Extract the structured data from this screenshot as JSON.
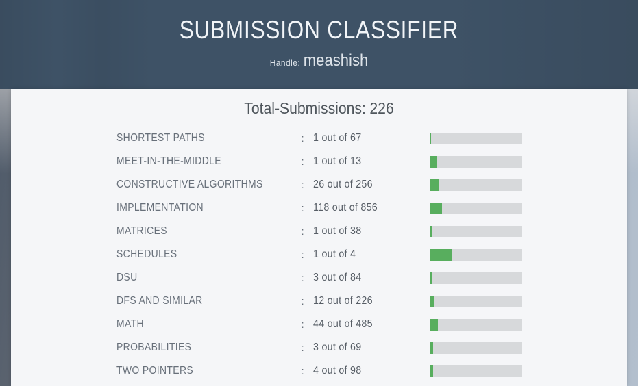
{
  "colors": {
    "header_bg": "#3e5266",
    "header_text": "#f2f5f8",
    "handle_text": "#dde3e9",
    "card_bg": "#f5f6f8",
    "page_text": "#4f565c",
    "label_text": "#68707a",
    "value_text": "#575e66",
    "bar_track": "#d7d9db",
    "bar_fill": "#58ae5e"
  },
  "header": {
    "title": "SUBMISSION CLASSIFIER",
    "handle_label": "Handle:",
    "handle_value": "meashish"
  },
  "summary": {
    "total_label": "Total-Submissions:",
    "total_value": "226"
  },
  "row_separator": ":",
  "rows": [
    {
      "label": "SHORTEST PATHS",
      "count": 1,
      "total": 67,
      "display": "1 out of 67"
    },
    {
      "label": "MEET-IN-THE-MIDDLE",
      "count": 1,
      "total": 13,
      "display": "1 out of 13"
    },
    {
      "label": "CONSTRUCTIVE ALGORITHMS",
      "count": 26,
      "total": 256,
      "display": "26 out of 256"
    },
    {
      "label": "IMPLEMENTATION",
      "count": 118,
      "total": 856,
      "display": "118 out of 856"
    },
    {
      "label": "MATRICES",
      "count": 1,
      "total": 38,
      "display": "1 out of 38"
    },
    {
      "label": "SCHEDULES",
      "count": 1,
      "total": 4,
      "display": "1 out of 4"
    },
    {
      "label": "DSU",
      "count": 3,
      "total": 84,
      "display": "3 out of 84"
    },
    {
      "label": "DFS AND SIMILAR",
      "count": 12,
      "total": 226,
      "display": "12 out of 226"
    },
    {
      "label": "MATH",
      "count": 44,
      "total": 485,
      "display": "44 out of 485"
    },
    {
      "label": "PROBABILITIES",
      "count": 3,
      "total": 69,
      "display": "3 out of 69"
    },
    {
      "label": "TWO POINTERS",
      "count": 4,
      "total": 98,
      "display": "4 out of 98"
    }
  ]
}
